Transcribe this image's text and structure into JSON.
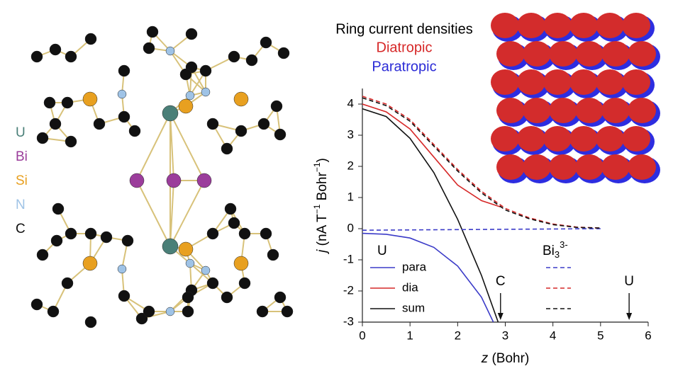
{
  "chart_data": {
    "type": "line",
    "title": "Ring current densities",
    "subtitles": [
      {
        "text": "Diatropic",
        "color": "#d62828"
      },
      {
        "text": "Paratropic",
        "color": "#2b2bd6"
      }
    ],
    "elements": [
      {
        "label": "U",
        "color": "#4a7f78"
      },
      {
        "label": "Bi",
        "color": "#9b3d9b"
      },
      {
        "label": "Si",
        "color": "#e8a020"
      },
      {
        "label": "N",
        "color": "#9fc3e6"
      },
      {
        "label": "C",
        "color": "#111111"
      }
    ],
    "x_label": {
      "var": "z",
      "rest": " (Bohr)"
    },
    "y_label": {
      "var": "j",
      "parts": [
        " (nA T",
        "−1",
        " Bohr",
        "−1",
        ")"
      ]
    },
    "xlim": [
      0,
      6
    ],
    "xticks": [
      0,
      1,
      2,
      3,
      4,
      5,
      6
    ],
    "ylim": [
      -3,
      4.5
    ],
    "yticks": [
      -3,
      -2,
      -1,
      0,
      1,
      2,
      3,
      4
    ],
    "legend_groups": [
      {
        "label": "U"
      },
      {
        "base": "Bi",
        "sub": "3",
        "sup": "3-"
      }
    ],
    "series": [
      {
        "name": "para",
        "group": 0,
        "color": "#3b3bc8",
        "dash": false,
        "x": [
          0,
          0.5,
          1,
          1.5,
          2,
          2.5,
          2.75
        ],
        "values": [
          -0.15,
          -0.18,
          -0.3,
          -0.6,
          -1.2,
          -2.2,
          -3
        ]
      },
      {
        "name": "dia",
        "group": 0,
        "color": "#d62828",
        "dash": false,
        "x": [
          0,
          0.5,
          1,
          1.5,
          2,
          2.5,
          2.9
        ],
        "values": [
          4.0,
          3.75,
          3.2,
          2.3,
          1.4,
          0.9,
          0.7
        ]
      },
      {
        "name": "sum",
        "group": 0,
        "color": "#111111",
        "dash": false,
        "x": [
          0,
          0.5,
          1,
          1.5,
          2,
          2.5,
          2.85
        ],
        "values": [
          3.85,
          3.6,
          2.9,
          1.8,
          0.3,
          -1.5,
          -3
        ]
      },
      {
        "name": "para",
        "group": 1,
        "color": "#3b3bc8",
        "dash": true,
        "x": [
          0,
          1,
          2,
          3,
          4,
          5
        ],
        "values": [
          -0.05,
          -0.04,
          -0.03,
          -0.02,
          -0.01,
          0.0
        ]
      },
      {
        "name": "dia",
        "group": 1,
        "color": "#d62828",
        "dash": true,
        "x": [
          0,
          0.5,
          1,
          1.5,
          2,
          2.5,
          3,
          3.5,
          4,
          4.5,
          5
        ],
        "values": [
          4.25,
          4.0,
          3.5,
          2.7,
          1.9,
          1.2,
          0.65,
          0.35,
          0.15,
          0.05,
          0.02
        ]
      },
      {
        "name": "sum",
        "group": 1,
        "color": "#111111",
        "dash": true,
        "x": [
          0,
          0.5,
          1,
          1.5,
          2,
          2.5,
          3,
          3.5,
          4,
          4.5,
          5
        ],
        "values": [
          4.2,
          3.95,
          3.45,
          2.65,
          1.85,
          1.15,
          0.6,
          0.32,
          0.13,
          0.04,
          0.02
        ]
      }
    ],
    "annotations": [
      {
        "text": "C",
        "x": 2.9
      },
      {
        "text": "U",
        "x": 5.6
      }
    ]
  }
}
